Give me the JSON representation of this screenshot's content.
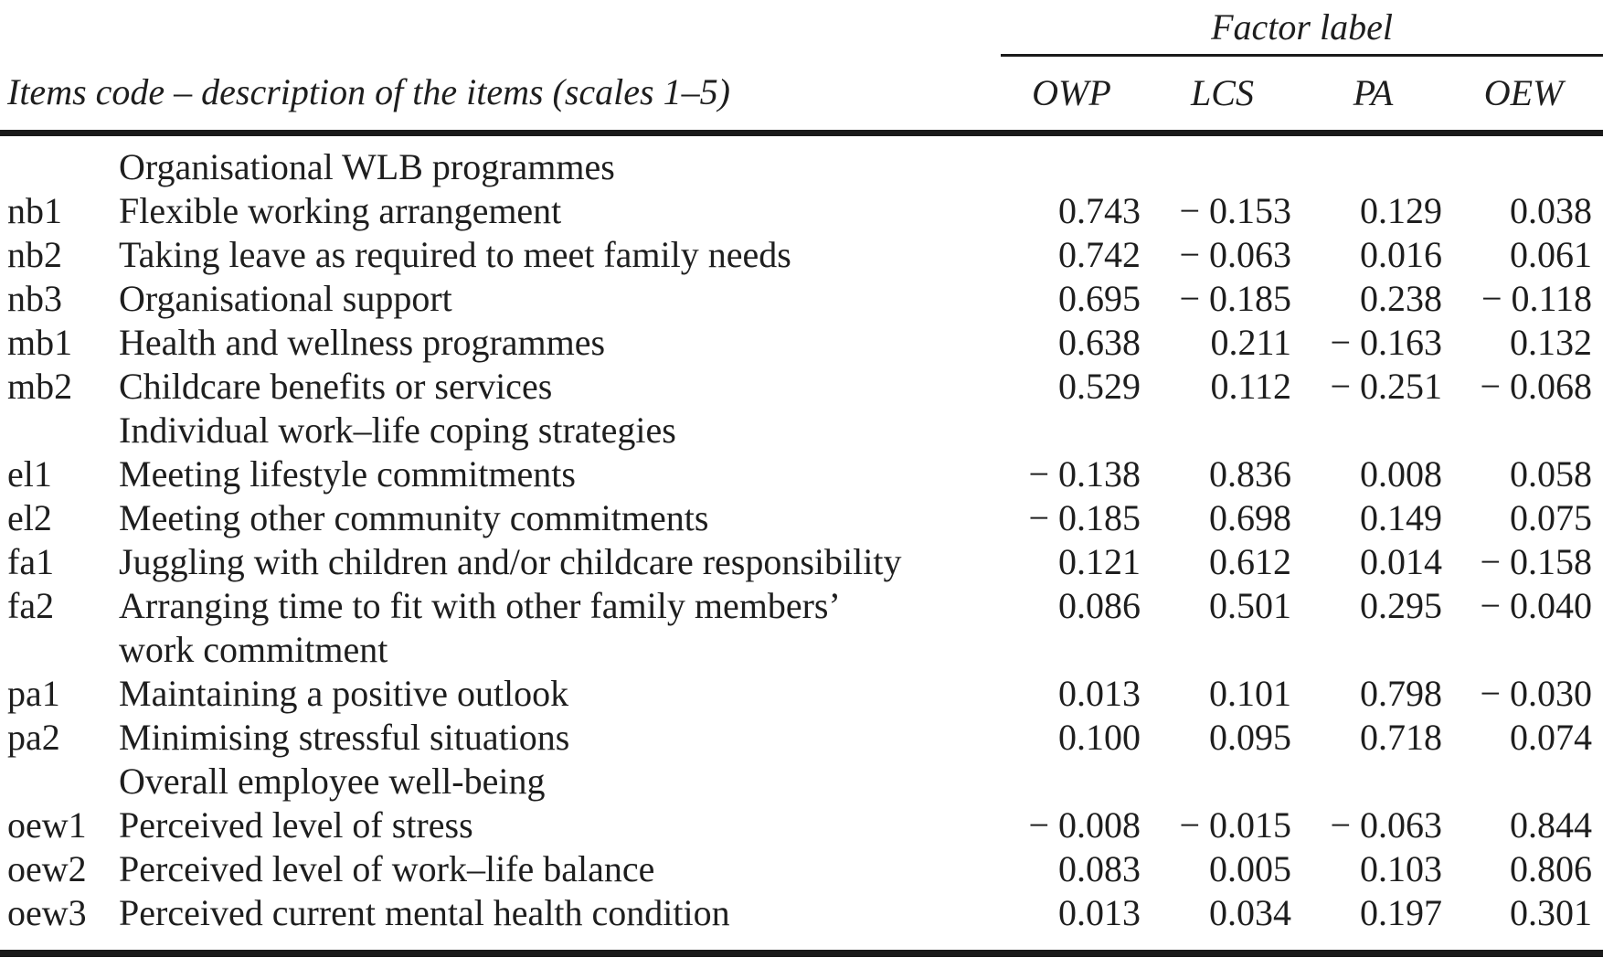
{
  "table": {
    "header": {
      "items_col_label": "Items code – description of the items (scales 1–5)",
      "factor_group_label": "Factor label",
      "factor_columns": [
        "OWP",
        "LCS",
        "PA",
        "OEW"
      ]
    },
    "sections": [
      {
        "title": "Organisational WLB programmes",
        "rows": [
          {
            "code": "nb1",
            "lines": [
              "Flexible working arrangement"
            ],
            "values": [
              "0.743",
              "− 0.153",
              "0.129",
              "0.038"
            ]
          },
          {
            "code": "nb2",
            "lines": [
              "Taking leave as required to meet family needs"
            ],
            "values": [
              "0.742",
              "− 0.063",
              "0.016",
              "0.061"
            ]
          },
          {
            "code": "nb3",
            "lines": [
              "Organisational support"
            ],
            "values": [
              "0.695",
              "− 0.185",
              "0.238",
              "− 0.118"
            ]
          },
          {
            "code": "mb1",
            "lines": [
              "Health and wellness programmes"
            ],
            "values": [
              "0.638",
              "0.211",
              "− 0.163",
              "0.132"
            ]
          },
          {
            "code": "mb2",
            "lines": [
              "Childcare benefits or services"
            ],
            "values": [
              "0.529",
              "0.112",
              "− 0.251",
              "− 0.068"
            ]
          }
        ]
      },
      {
        "title": "Individual work–life coping strategies",
        "rows": [
          {
            "code": "el1",
            "lines": [
              "Meeting lifestyle commitments"
            ],
            "values": [
              "− 0.138",
              "0.836",
              "0.008",
              "0.058"
            ]
          },
          {
            "code": "el2",
            "lines": [
              "Meeting other community commitments"
            ],
            "values": [
              "− 0.185",
              "0.698",
              "0.149",
              "0.075"
            ]
          },
          {
            "code": "fa1",
            "lines": [
              "Juggling with children and/or childcare responsibility"
            ],
            "values": [
              "0.121",
              "0.612",
              "0.014",
              "− 0.158"
            ]
          },
          {
            "code": "fa2",
            "lines": [
              "Arranging time to fit with other family members’",
              "work commitment"
            ],
            "values": [
              "0.086",
              "0.501",
              "0.295",
              "− 0.040"
            ]
          },
          {
            "code": "pa1",
            "lines": [
              "Maintaining a positive outlook"
            ],
            "values": [
              "0.013",
              "0.101",
              "0.798",
              "− 0.030"
            ]
          },
          {
            "code": "pa2",
            "lines": [
              "Minimising stressful situations"
            ],
            "values": [
              "0.100",
              "0.095",
              "0.718",
              "0.074"
            ]
          }
        ]
      },
      {
        "title": "Overall employee well-being",
        "rows": [
          {
            "code": "oew1",
            "lines": [
              "Perceived level of stress"
            ],
            "values": [
              "− 0.008",
              "− 0.015",
              "− 0.063",
              "0.844"
            ]
          },
          {
            "code": "oew2",
            "lines": [
              "Perceived level of work–life balance"
            ],
            "values": [
              "0.083",
              "0.005",
              "0.103",
              "0.806"
            ]
          },
          {
            "code": "oew3",
            "lines": [
              "Perceived current mental health condition"
            ],
            "values": [
              "0.013",
              "0.034",
              "0.197",
              "0.301"
            ]
          }
        ]
      }
    ]
  }
}
